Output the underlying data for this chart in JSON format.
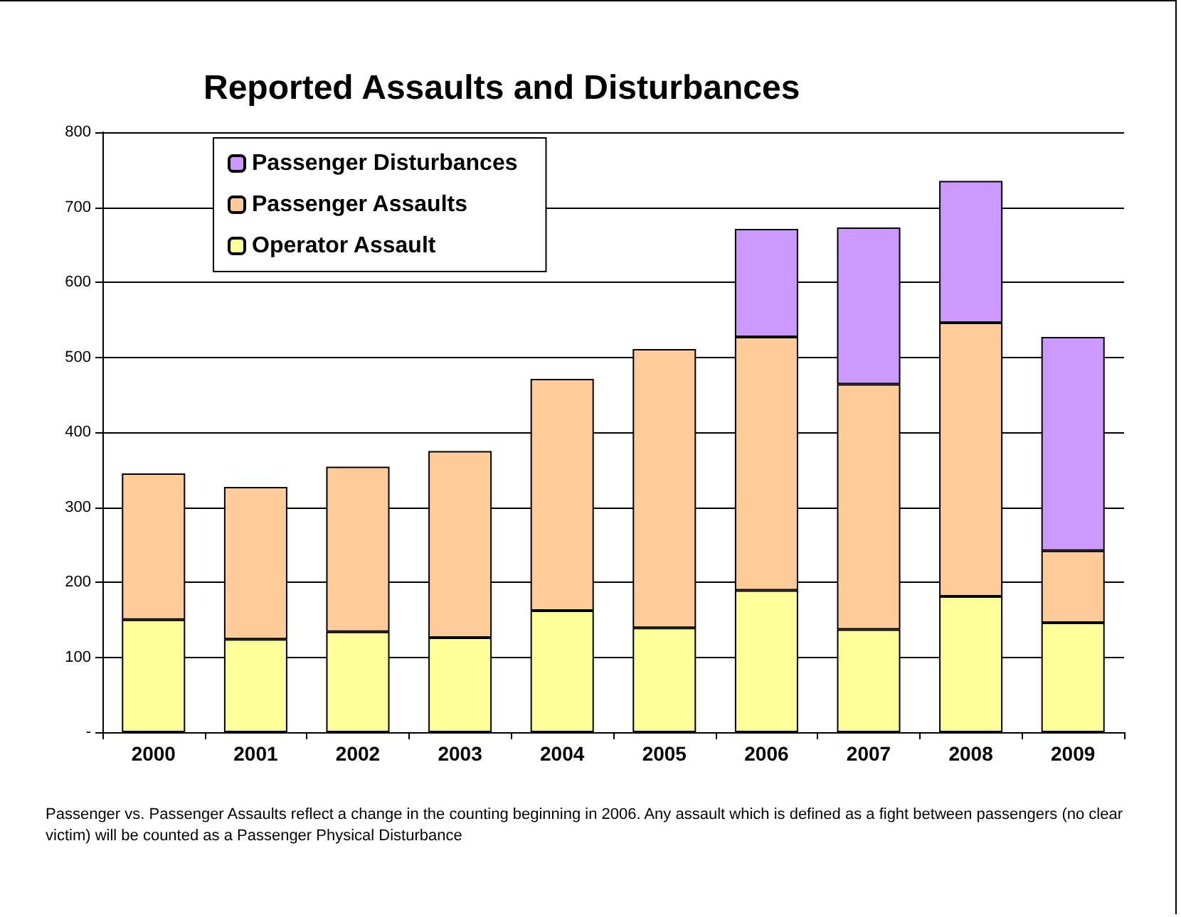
{
  "chart_data": {
    "type": "bar",
    "title": "Reported Assaults and Disturbances",
    "categories": [
      "2000",
      "2001",
      "2002",
      "2003",
      "2004",
      "2005",
      "2006",
      "2007",
      "2008",
      "2009"
    ],
    "stacked": true,
    "series": [
      {
        "name": "Operator Assault",
        "color": "#ffff99",
        "values": [
          150,
          124,
          134,
          126,
          162,
          139,
          189,
          137,
          181,
          146
        ]
      },
      {
        "name": "Passenger Assaults",
        "color": "#ffcc99",
        "values": [
          195,
          203,
          220,
          249,
          309,
          372,
          338,
          327,
          365,
          96
        ]
      },
      {
        "name": "Passenger Disturbances",
        "color": "#cc99ff",
        "values": [
          null,
          null,
          null,
          null,
          null,
          null,
          144,
          209,
          189,
          285
        ]
      }
    ],
    "ylim": [
      0,
      800
    ],
    "yticks": [
      {
        "value": 0,
        "label": "-"
      },
      100,
      200,
      300,
      400,
      500,
      600,
      700,
      800
    ],
    "grid": "y",
    "legend": "top left",
    "annotations": [
      "Passenger vs. Passenger Assaults reflect a change in the counting beginning in 2006.  Any assault which is defined as a fight between passengers (no clear victim) will be counted as a Passenger Physical Disturbance"
    ]
  }
}
